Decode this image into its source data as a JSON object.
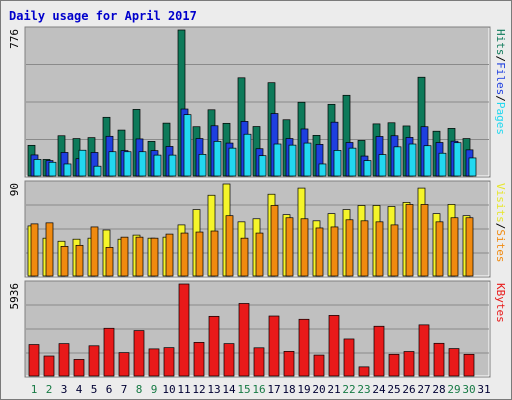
{
  "title": "Daily usage for April 2017",
  "colors": {
    "hits": "#0e7a5a",
    "files": "#1e3fe0",
    "pages": "#22d8f0",
    "visits": "#f5f52a",
    "sites": "#f08a10",
    "kbytes": "#e81a1a",
    "title": "#0000cc",
    "panel": "#c0c0c0",
    "weekend": "#167a44",
    "weekday": "#000033"
  },
  "chart_data": [
    {
      "type": "bar",
      "name": "hits-files-pages",
      "ymax_label": "776",
      "ylim": [
        0,
        776
      ],
      "legend": [
        {
          "text": "Pages",
          "color": "#22d8f0"
        },
        {
          "text": "/",
          "color": "#000000"
        },
        {
          "text": "Files",
          "color": "#1e3fe0"
        },
        {
          "text": "/",
          "color": "#000000"
        },
        {
          "text": "Hits",
          "color": "#0e7a5a"
        }
      ],
      "categories": [
        "1",
        "2",
        "3",
        "4",
        "5",
        "6",
        "7",
        "8",
        "9",
        "10",
        "11",
        "12",
        "13",
        "14",
        "15",
        "16",
        "17",
        "18",
        "19",
        "20",
        "21",
        "22",
        "23",
        "24",
        "25",
        "26",
        "27",
        "28",
        "29",
        "30",
        "31"
      ],
      "series": [
        {
          "name": "Hits",
          "values": [
            163,
            88,
            214,
            199,
            204,
            312,
            244,
            354,
            184,
            281,
            776,
            262,
            352,
            280,
            522,
            263,
            496,
            299,
            392,
            216,
            381,
            429,
            189,
            277,
            283,
            266,
            525,
            238,
            253,
            199,
            0
          ]
        },
        {
          "name": "Files",
          "values": [
            112,
            82,
            125,
            92,
            125,
            211,
            135,
            197,
            135,
            157,
            356,
            199,
            267,
            175,
            290,
            145,
            332,
            199,
            250,
            168,
            286,
            178,
            106,
            210,
            214,
            205,
            262,
            178,
            185,
            139,
            0
          ]
        },
        {
          "name": "Pages",
          "values": [
            88,
            73,
            64,
            137,
            52,
            129,
            129,
            129,
            111,
            111,
            326,
            115,
            184,
            148,
            222,
            108,
            170,
            164,
            175,
            64,
            136,
            148,
            82,
            114,
            155,
            170,
            161,
            121,
            177,
            96,
            0
          ]
        }
      ]
    },
    {
      "type": "bar",
      "name": "visits-sites",
      "ymax_label": "90",
      "ylim": [
        0,
        90
      ],
      "legend": [
        {
          "text": "Sites",
          "color": "#f08a10"
        },
        {
          "text": "/",
          "color": "#000000"
        },
        {
          "text": "Visits",
          "color": "#e6e62a"
        }
      ],
      "categories": [
        "1",
        "2",
        "3",
        "4",
        "5",
        "6",
        "7",
        "8",
        "9",
        "10",
        "11",
        "12",
        "13",
        "14",
        "15",
        "16",
        "17",
        "18",
        "19",
        "20",
        "21",
        "22",
        "23",
        "24",
        "25",
        "26",
        "27",
        "28",
        "29",
        "30",
        "31"
      ],
      "series": [
        {
          "name": "Visits",
          "values": [
            49,
            37,
            34,
            36,
            37,
            45,
            36,
            40,
            37,
            38,
            50,
            65,
            79,
            90,
            53,
            56,
            80,
            60,
            86,
            54,
            61,
            65,
            69,
            69,
            68,
            72,
            86,
            61,
            70,
            59,
            0
          ]
        },
        {
          "name": "Sites",
          "values": [
            51,
            52,
            29,
            30,
            48,
            28,
            38,
            38,
            37,
            41,
            42,
            43,
            44,
            59,
            37,
            42,
            69,
            57,
            56,
            47,
            48,
            55,
            54,
            53,
            50,
            70,
            70,
            53,
            57,
            57,
            0
          ]
        }
      ]
    },
    {
      "type": "bar",
      "name": "kbytes",
      "ymax_label": "5936",
      "ylim": [
        0,
        5936
      ],
      "legend": [
        {
          "text": "KBytes",
          "color": "#e81a1a"
        }
      ],
      "categories": [
        "1",
        "2",
        "3",
        "4",
        "5",
        "6",
        "7",
        "8",
        "9",
        "10",
        "11",
        "12",
        "13",
        "14",
        "15",
        "16",
        "17",
        "18",
        "19",
        "20",
        "21",
        "22",
        "23",
        "24",
        "25",
        "26",
        "27",
        "28",
        "29",
        "30",
        "31"
      ],
      "series": [
        {
          "name": "KBytes",
          "values": [
            2030,
            1290,
            2090,
            1070,
            1950,
            3080,
            1510,
            2930,
            1750,
            1830,
            5936,
            2170,
            3850,
            2090,
            4680,
            1820,
            3870,
            1590,
            3660,
            1350,
            3910,
            2390,
            590,
            3210,
            1400,
            1580,
            3300,
            2110,
            1770,
            1400,
            0
          ]
        }
      ]
    }
  ]
}
